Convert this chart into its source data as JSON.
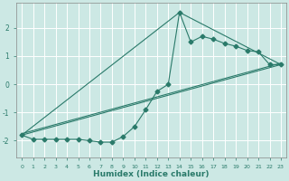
{
  "xlabel": "Humidex (Indice chaleur)",
  "bg_color": "#cce8e4",
  "grid_color": "#ffffff",
  "line_color": "#2a7a6a",
  "xlim": [
    -0.5,
    23.5
  ],
  "ylim": [
    -2.6,
    2.9
  ],
  "yticks": [
    -2,
    -1,
    0,
    1,
    2
  ],
  "xticks": [
    0,
    1,
    2,
    3,
    4,
    5,
    6,
    7,
    8,
    9,
    10,
    11,
    12,
    13,
    14,
    15,
    16,
    17,
    18,
    19,
    20,
    21,
    22,
    23
  ],
  "series1_x": [
    0,
    1,
    2,
    3,
    4,
    5,
    6,
    7,
    8,
    9,
    10,
    11,
    12,
    13,
    14,
    15,
    16,
    17,
    18,
    19,
    20,
    21,
    22,
    23
  ],
  "series1_y": [
    -1.8,
    -1.95,
    -1.95,
    -1.95,
    -1.95,
    -1.95,
    -2.0,
    -2.05,
    -2.05,
    -1.85,
    -1.5,
    -0.9,
    -0.25,
    0.0,
    2.55,
    1.5,
    1.7,
    1.6,
    1.45,
    1.35,
    1.2,
    1.15,
    0.7,
    0.7
  ],
  "line2_x": [
    0,
    23
  ],
  "line2_y": [
    -1.8,
    0.7
  ],
  "line3_x": [
    0,
    14,
    23
  ],
  "line3_y": [
    -1.8,
    2.55,
    0.7
  ],
  "line4_x": [
    0,
    23
  ],
  "line4_y": [
    -1.75,
    0.75
  ]
}
